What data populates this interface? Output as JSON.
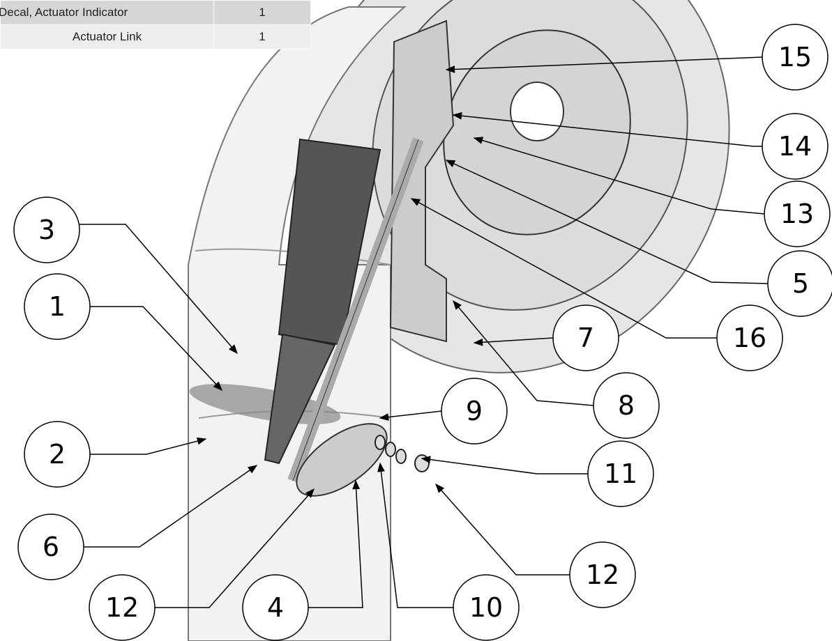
{
  "table": {
    "rows": [
      [
        "Decal, Actuator Indicator",
        "1"
      ],
      [
        "Actuator Link",
        "1"
      ]
    ]
  },
  "callouts": [
    {
      "label": "15"
    },
    {
      "label": "14"
    },
    {
      "label": "13"
    },
    {
      "label": "5"
    },
    {
      "label": "16"
    },
    {
      "label": "7"
    },
    {
      "label": "8"
    },
    {
      "label": "9"
    },
    {
      "label": "11"
    },
    {
      "label": "12"
    },
    {
      "label": "10"
    },
    {
      "label": "4"
    },
    {
      "label": "12"
    },
    {
      "label": "6"
    },
    {
      "label": "2"
    },
    {
      "label": "1"
    },
    {
      "label": "3"
    }
  ]
}
